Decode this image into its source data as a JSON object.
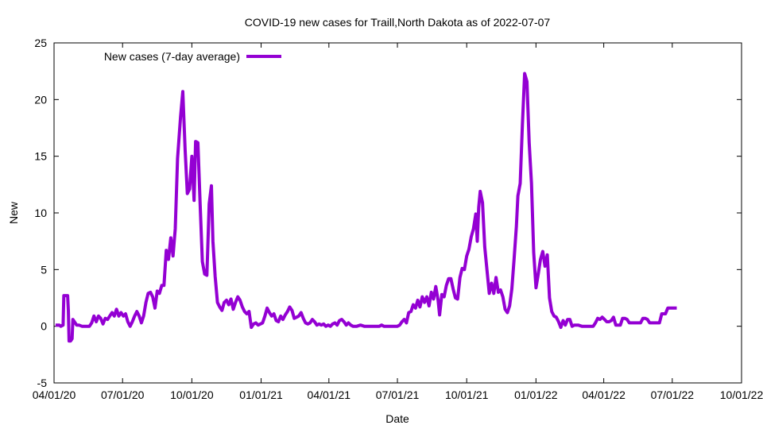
{
  "chart_data": {
    "type": "line",
    "title": "COVID-19 new cases for Traill,North Dakota as of 2022-07-07",
    "xlabel": "Date",
    "ylabel": "New",
    "xlim": [
      "2020-04-01",
      "2022-10-01"
    ],
    "ylim": [
      -5,
      25
    ],
    "x_ticks": [
      "04/01/20",
      "07/01/20",
      "10/01/20",
      "01/01/21",
      "04/01/21",
      "07/01/21",
      "10/01/21",
      "01/01/22",
      "04/01/22",
      "07/01/22",
      "10/01/22"
    ],
    "x_tick_dates": [
      "2020-04-01",
      "2020-07-01",
      "2020-10-01",
      "2021-01-01",
      "2021-04-01",
      "2021-07-01",
      "2021-10-01",
      "2022-01-01",
      "2022-04-01",
      "2022-07-01",
      "2022-10-01"
    ],
    "y_ticks": [
      -5,
      0,
      5,
      10,
      15,
      20,
      25
    ],
    "y_tick_labels": [
      "-5",
      "0",
      "5",
      "10",
      "15",
      "20",
      "25"
    ],
    "grid": false,
    "legend": "top-left",
    "series": [
      {
        "name": "New cases (7-day average)",
        "color": "#9400d3",
        "points": [
          [
            "2020-04-03",
            0.1
          ],
          [
            "2020-04-08",
            0.1
          ],
          [
            "2020-04-10",
            0.0
          ],
          [
            "2020-04-13",
            0.1
          ],
          [
            "2020-04-14",
            2.7
          ],
          [
            "2020-04-19",
            2.7
          ],
          [
            "2020-04-20",
            1.4
          ],
          [
            "2020-04-21",
            -1.3
          ],
          [
            "2020-04-23",
            -1.3
          ],
          [
            "2020-04-25",
            -1.1
          ],
          [
            "2020-04-26",
            0.6
          ],
          [
            "2020-04-28",
            0.4
          ],
          [
            "2020-05-01",
            0.1
          ],
          [
            "2020-05-04",
            0.1
          ],
          [
            "2020-05-08",
            0.0
          ],
          [
            "2020-05-13",
            0.0
          ],
          [
            "2020-05-18",
            0.0
          ],
          [
            "2020-05-21",
            0.3
          ],
          [
            "2020-05-24",
            0.9
          ],
          [
            "2020-05-27",
            0.4
          ],
          [
            "2020-05-30",
            0.9
          ],
          [
            "2020-06-02",
            0.7
          ],
          [
            "2020-06-05",
            0.2
          ],
          [
            "2020-06-08",
            0.7
          ],
          [
            "2020-06-11",
            0.6
          ],
          [
            "2020-06-14",
            0.9
          ],
          [
            "2020-06-17",
            1.2
          ],
          [
            "2020-06-20",
            0.9
          ],
          [
            "2020-06-23",
            1.5
          ],
          [
            "2020-06-26",
            0.9
          ],
          [
            "2020-06-29",
            1.2
          ],
          [
            "2020-07-02",
            0.9
          ],
          [
            "2020-07-05",
            1.1
          ],
          [
            "2020-07-08",
            0.4
          ],
          [
            "2020-07-11",
            0.0
          ],
          [
            "2020-07-14",
            0.4
          ],
          [
            "2020-07-17",
            0.9
          ],
          [
            "2020-07-20",
            1.3
          ],
          [
            "2020-07-23",
            0.9
          ],
          [
            "2020-07-26",
            0.3
          ],
          [
            "2020-07-29",
            0.9
          ],
          [
            "2020-08-01",
            2.1
          ],
          [
            "2020-08-04",
            2.9
          ],
          [
            "2020-08-07",
            3.0
          ],
          [
            "2020-08-10",
            2.6
          ],
          [
            "2020-08-13",
            1.6
          ],
          [
            "2020-08-16",
            3.1
          ],
          [
            "2020-08-19",
            2.9
          ],
          [
            "2020-08-22",
            3.6
          ],
          [
            "2020-08-25",
            3.6
          ],
          [
            "2020-08-28",
            6.7
          ],
          [
            "2020-08-31",
            5.9
          ],
          [
            "2020-09-03",
            7.8
          ],
          [
            "2020-09-06",
            6.2
          ],
          [
            "2020-09-09",
            8.6
          ],
          [
            "2020-09-12",
            14.8
          ],
          [
            "2020-09-16",
            18.5
          ],
          [
            "2020-09-19",
            20.7
          ],
          [
            "2020-09-22",
            15.6
          ],
          [
            "2020-09-25",
            11.7
          ],
          [
            "2020-09-28",
            12.1
          ],
          [
            "2020-10-01",
            15.0
          ],
          [
            "2020-10-04",
            11.1
          ],
          [
            "2020-10-06",
            16.3
          ],
          [
            "2020-10-09",
            16.2
          ],
          [
            "2020-10-12",
            10.8
          ],
          [
            "2020-10-15",
            5.7
          ],
          [
            "2020-10-18",
            4.6
          ],
          [
            "2020-10-21",
            4.5
          ],
          [
            "2020-10-24",
            10.8
          ],
          [
            "2020-10-27",
            12.4
          ],
          [
            "2020-10-29",
            7.5
          ],
          [
            "2020-11-01",
            4.4
          ],
          [
            "2020-11-04",
            2.1
          ],
          [
            "2020-11-07",
            1.7
          ],
          [
            "2020-11-10",
            1.4
          ],
          [
            "2020-11-13",
            2.1
          ],
          [
            "2020-11-16",
            2.3
          ],
          [
            "2020-11-19",
            1.9
          ],
          [
            "2020-11-22",
            2.4
          ],
          [
            "2020-11-25",
            1.5
          ],
          [
            "2020-11-28",
            2.1
          ],
          [
            "2020-12-01",
            2.6
          ],
          [
            "2020-12-04",
            2.3
          ],
          [
            "2020-12-07",
            1.7
          ],
          [
            "2020-12-10",
            1.3
          ],
          [
            "2020-12-13",
            1.1
          ],
          [
            "2020-12-16",
            1.3
          ],
          [
            "2020-12-19",
            -0.1
          ],
          [
            "2020-12-22",
            0.2
          ],
          [
            "2020-12-25",
            0.3
          ],
          [
            "2020-12-28",
            0.1
          ],
          [
            "2020-12-31",
            0.2
          ],
          [
            "2021-01-03",
            0.3
          ],
          [
            "2021-01-06",
            0.9
          ],
          [
            "2021-01-09",
            1.6
          ],
          [
            "2021-01-12",
            1.2
          ],
          [
            "2021-01-15",
            0.9
          ],
          [
            "2021-01-18",
            1.1
          ],
          [
            "2021-01-21",
            0.5
          ],
          [
            "2021-01-24",
            0.4
          ],
          [
            "2021-01-27",
            0.9
          ],
          [
            "2021-01-30",
            0.6
          ],
          [
            "2021-02-02",
            1.0
          ],
          [
            "2021-02-05",
            1.3
          ],
          [
            "2021-02-08",
            1.7
          ],
          [
            "2021-02-11",
            1.4
          ],
          [
            "2021-02-14",
            0.7
          ],
          [
            "2021-02-17",
            0.8
          ],
          [
            "2021-02-20",
            0.9
          ],
          [
            "2021-02-23",
            1.2
          ],
          [
            "2021-02-26",
            0.7
          ],
          [
            "2021-03-01",
            0.3
          ],
          [
            "2021-03-04",
            0.2
          ],
          [
            "2021-03-07",
            0.3
          ],
          [
            "2021-03-10",
            0.6
          ],
          [
            "2021-03-13",
            0.4
          ],
          [
            "2021-03-16",
            0.1
          ],
          [
            "2021-03-19",
            0.2
          ],
          [
            "2021-03-22",
            0.1
          ],
          [
            "2021-03-25",
            0.2
          ],
          [
            "2021-03-28",
            0.0
          ],
          [
            "2021-03-31",
            0.1
          ],
          [
            "2021-04-03",
            0.0
          ],
          [
            "2021-04-06",
            0.2
          ],
          [
            "2021-04-09",
            0.3
          ],
          [
            "2021-04-12",
            0.1
          ],
          [
            "2021-04-15",
            0.5
          ],
          [
            "2021-04-18",
            0.6
          ],
          [
            "2021-04-21",
            0.4
          ],
          [
            "2021-04-24",
            0.1
          ],
          [
            "2021-04-27",
            0.3
          ],
          [
            "2021-04-30",
            0.1
          ],
          [
            "2021-05-03",
            0.0
          ],
          [
            "2021-05-08",
            0.0
          ],
          [
            "2021-05-13",
            0.1
          ],
          [
            "2021-05-18",
            0.0
          ],
          [
            "2021-05-23",
            0.0
          ],
          [
            "2021-05-28",
            0.0
          ],
          [
            "2021-06-02",
            0.0
          ],
          [
            "2021-06-07",
            0.0
          ],
          [
            "2021-06-10",
            0.1
          ],
          [
            "2021-06-13",
            0.0
          ],
          [
            "2021-06-18",
            0.0
          ],
          [
            "2021-06-23",
            0.0
          ],
          [
            "2021-06-28",
            0.0
          ],
          [
            "2021-07-01",
            0.0
          ],
          [
            "2021-07-04",
            0.1
          ],
          [
            "2021-07-07",
            0.4
          ],
          [
            "2021-07-10",
            0.6
          ],
          [
            "2021-07-13",
            0.3
          ],
          [
            "2021-07-16",
            1.2
          ],
          [
            "2021-07-19",
            1.3
          ],
          [
            "2021-07-22",
            1.9
          ],
          [
            "2021-07-25",
            1.6
          ],
          [
            "2021-07-28",
            2.3
          ],
          [
            "2021-07-31",
            1.7
          ],
          [
            "2021-08-03",
            2.6
          ],
          [
            "2021-08-06",
            2.1
          ],
          [
            "2021-08-09",
            2.6
          ],
          [
            "2021-08-12",
            1.8
          ],
          [
            "2021-08-15",
            3.0
          ],
          [
            "2021-08-18",
            2.4
          ],
          [
            "2021-08-21",
            3.5
          ],
          [
            "2021-08-24",
            2.3
          ],
          [
            "2021-08-26",
            1.0
          ],
          [
            "2021-08-29",
            2.8
          ],
          [
            "2021-09-01",
            2.6
          ],
          [
            "2021-09-04",
            3.6
          ],
          [
            "2021-09-07",
            4.2
          ],
          [
            "2021-09-10",
            4.2
          ],
          [
            "2021-09-13",
            3.3
          ],
          [
            "2021-09-16",
            2.5
          ],
          [
            "2021-09-19",
            2.4
          ],
          [
            "2021-09-22",
            4.3
          ],
          [
            "2021-09-25",
            5.1
          ],
          [
            "2021-09-28",
            5.0
          ],
          [
            "2021-10-01",
            6.2
          ],
          [
            "2021-10-04",
            6.8
          ],
          [
            "2021-10-07",
            7.9
          ],
          [
            "2021-10-10",
            8.6
          ],
          [
            "2021-10-13",
            9.9
          ],
          [
            "2021-10-15",
            7.5
          ],
          [
            "2021-10-17",
            10.5
          ],
          [
            "2021-10-19",
            11.9
          ],
          [
            "2021-10-22",
            10.9
          ],
          [
            "2021-10-25",
            7.0
          ],
          [
            "2021-10-28",
            4.9
          ],
          [
            "2021-10-31",
            2.9
          ],
          [
            "2021-11-03",
            3.8
          ],
          [
            "2021-11-06",
            2.9
          ],
          [
            "2021-11-09",
            4.3
          ],
          [
            "2021-11-12",
            3.0
          ],
          [
            "2021-11-15",
            3.2
          ],
          [
            "2021-11-18",
            2.6
          ],
          [
            "2021-11-21",
            1.5
          ],
          [
            "2021-11-24",
            1.2
          ],
          [
            "2021-11-27",
            1.8
          ],
          [
            "2021-11-30",
            3.3
          ],
          [
            "2021-12-03",
            6.0
          ],
          [
            "2021-12-06",
            8.8
          ],
          [
            "2021-12-08",
            11.5
          ],
          [
            "2021-12-11",
            12.6
          ],
          [
            "2021-12-14",
            17.8
          ],
          [
            "2021-12-17",
            22.3
          ],
          [
            "2021-12-20",
            21.6
          ],
          [
            "2021-12-23",
            16.2
          ],
          [
            "2021-12-26",
            12.6
          ],
          [
            "2021-12-29",
            6.5
          ],
          [
            "2022-01-01",
            3.4
          ],
          [
            "2022-01-04",
            4.6
          ],
          [
            "2022-01-07",
            5.9
          ],
          [
            "2022-01-10",
            6.6
          ],
          [
            "2022-01-13",
            5.3
          ],
          [
            "2022-01-16",
            6.3
          ],
          [
            "2022-01-19",
            2.5
          ],
          [
            "2022-01-22",
            1.3
          ],
          [
            "2022-01-25",
            0.9
          ],
          [
            "2022-01-28",
            0.8
          ],
          [
            "2022-01-31",
            0.4
          ],
          [
            "2022-02-03",
            -0.1
          ],
          [
            "2022-02-06",
            0.5
          ],
          [
            "2022-02-09",
            0.1
          ],
          [
            "2022-02-12",
            0.6
          ],
          [
            "2022-02-15",
            0.6
          ],
          [
            "2022-02-18",
            0.0
          ],
          [
            "2022-02-21",
            0.1
          ],
          [
            "2022-02-26",
            0.1
          ],
          [
            "2022-03-03",
            0.0
          ],
          [
            "2022-03-08",
            0.0
          ],
          [
            "2022-03-13",
            0.0
          ],
          [
            "2022-03-18",
            0.0
          ],
          [
            "2022-03-21",
            0.3
          ],
          [
            "2022-03-24",
            0.7
          ],
          [
            "2022-03-27",
            0.6
          ],
          [
            "2022-03-30",
            0.8
          ],
          [
            "2022-04-02",
            0.6
          ],
          [
            "2022-04-05",
            0.4
          ],
          [
            "2022-04-08",
            0.4
          ],
          [
            "2022-04-11",
            0.5
          ],
          [
            "2022-04-14",
            0.8
          ],
          [
            "2022-04-17",
            0.1
          ],
          [
            "2022-04-20",
            0.1
          ],
          [
            "2022-04-23",
            0.1
          ],
          [
            "2022-04-26",
            0.7
          ],
          [
            "2022-04-29",
            0.7
          ],
          [
            "2022-05-02",
            0.6
          ],
          [
            "2022-05-05",
            0.3
          ],
          [
            "2022-05-10",
            0.3
          ],
          [
            "2022-05-15",
            0.3
          ],
          [
            "2022-05-20",
            0.3
          ],
          [
            "2022-05-23",
            0.7
          ],
          [
            "2022-05-26",
            0.7
          ],
          [
            "2022-05-29",
            0.6
          ],
          [
            "2022-06-01",
            0.3
          ],
          [
            "2022-06-04",
            0.3
          ],
          [
            "2022-06-09",
            0.3
          ],
          [
            "2022-06-14",
            0.3
          ],
          [
            "2022-06-17",
            1.1
          ],
          [
            "2022-06-22",
            1.1
          ],
          [
            "2022-06-25",
            1.6
          ],
          [
            "2022-07-01",
            1.6
          ],
          [
            "2022-07-07",
            1.6
          ]
        ]
      }
    ]
  }
}
